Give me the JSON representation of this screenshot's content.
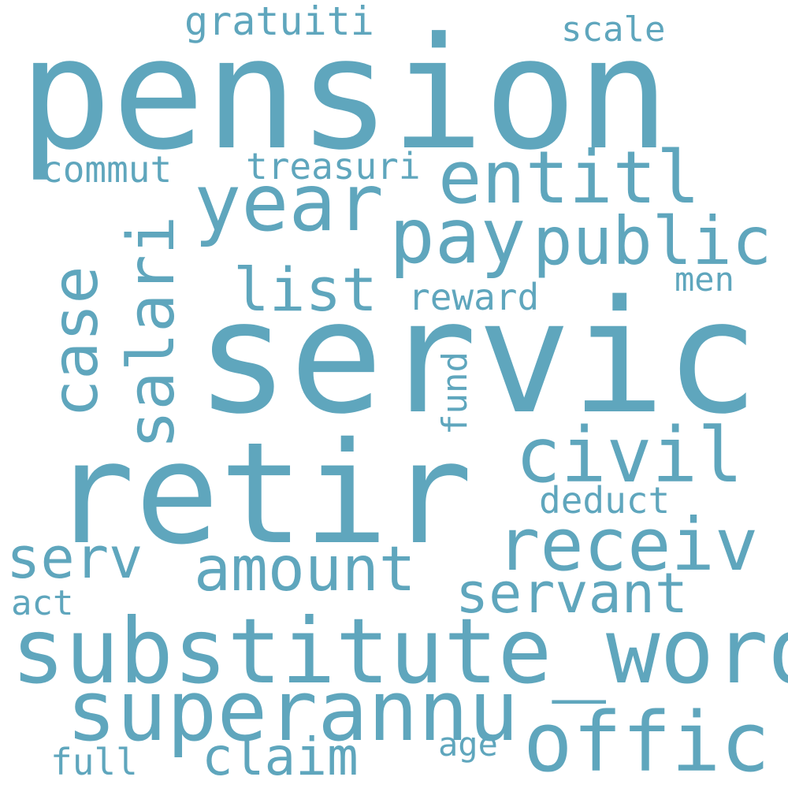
{
  "words": {
    "pension": "pension",
    "servic": "servic",
    "retir": "retir",
    "substitute_word": "substitute_word",
    "superannu": "superannu",
    "offic": "offic",
    "receiv": "receiv",
    "civil": "civil",
    "amount": "amount",
    "servant": "servant",
    "serv": "serv",
    "claim": "claim",
    "year": "year",
    "entitl": "entitl",
    "pay": "pay",
    "public": "public",
    "case": "case",
    "salari": "salari",
    "list": "list",
    "gratuiti": "gratuiti",
    "scale": "scale",
    "commut": "commut",
    "treasuri": "treasuri",
    "men": "men",
    "reward": "reward",
    "fund": "fund",
    "deduct": "deduct",
    "act": "act",
    "age": "age",
    "full": "full"
  },
  "colors": {
    "word": "#5fa6bd",
    "background": "#ffffff"
  }
}
